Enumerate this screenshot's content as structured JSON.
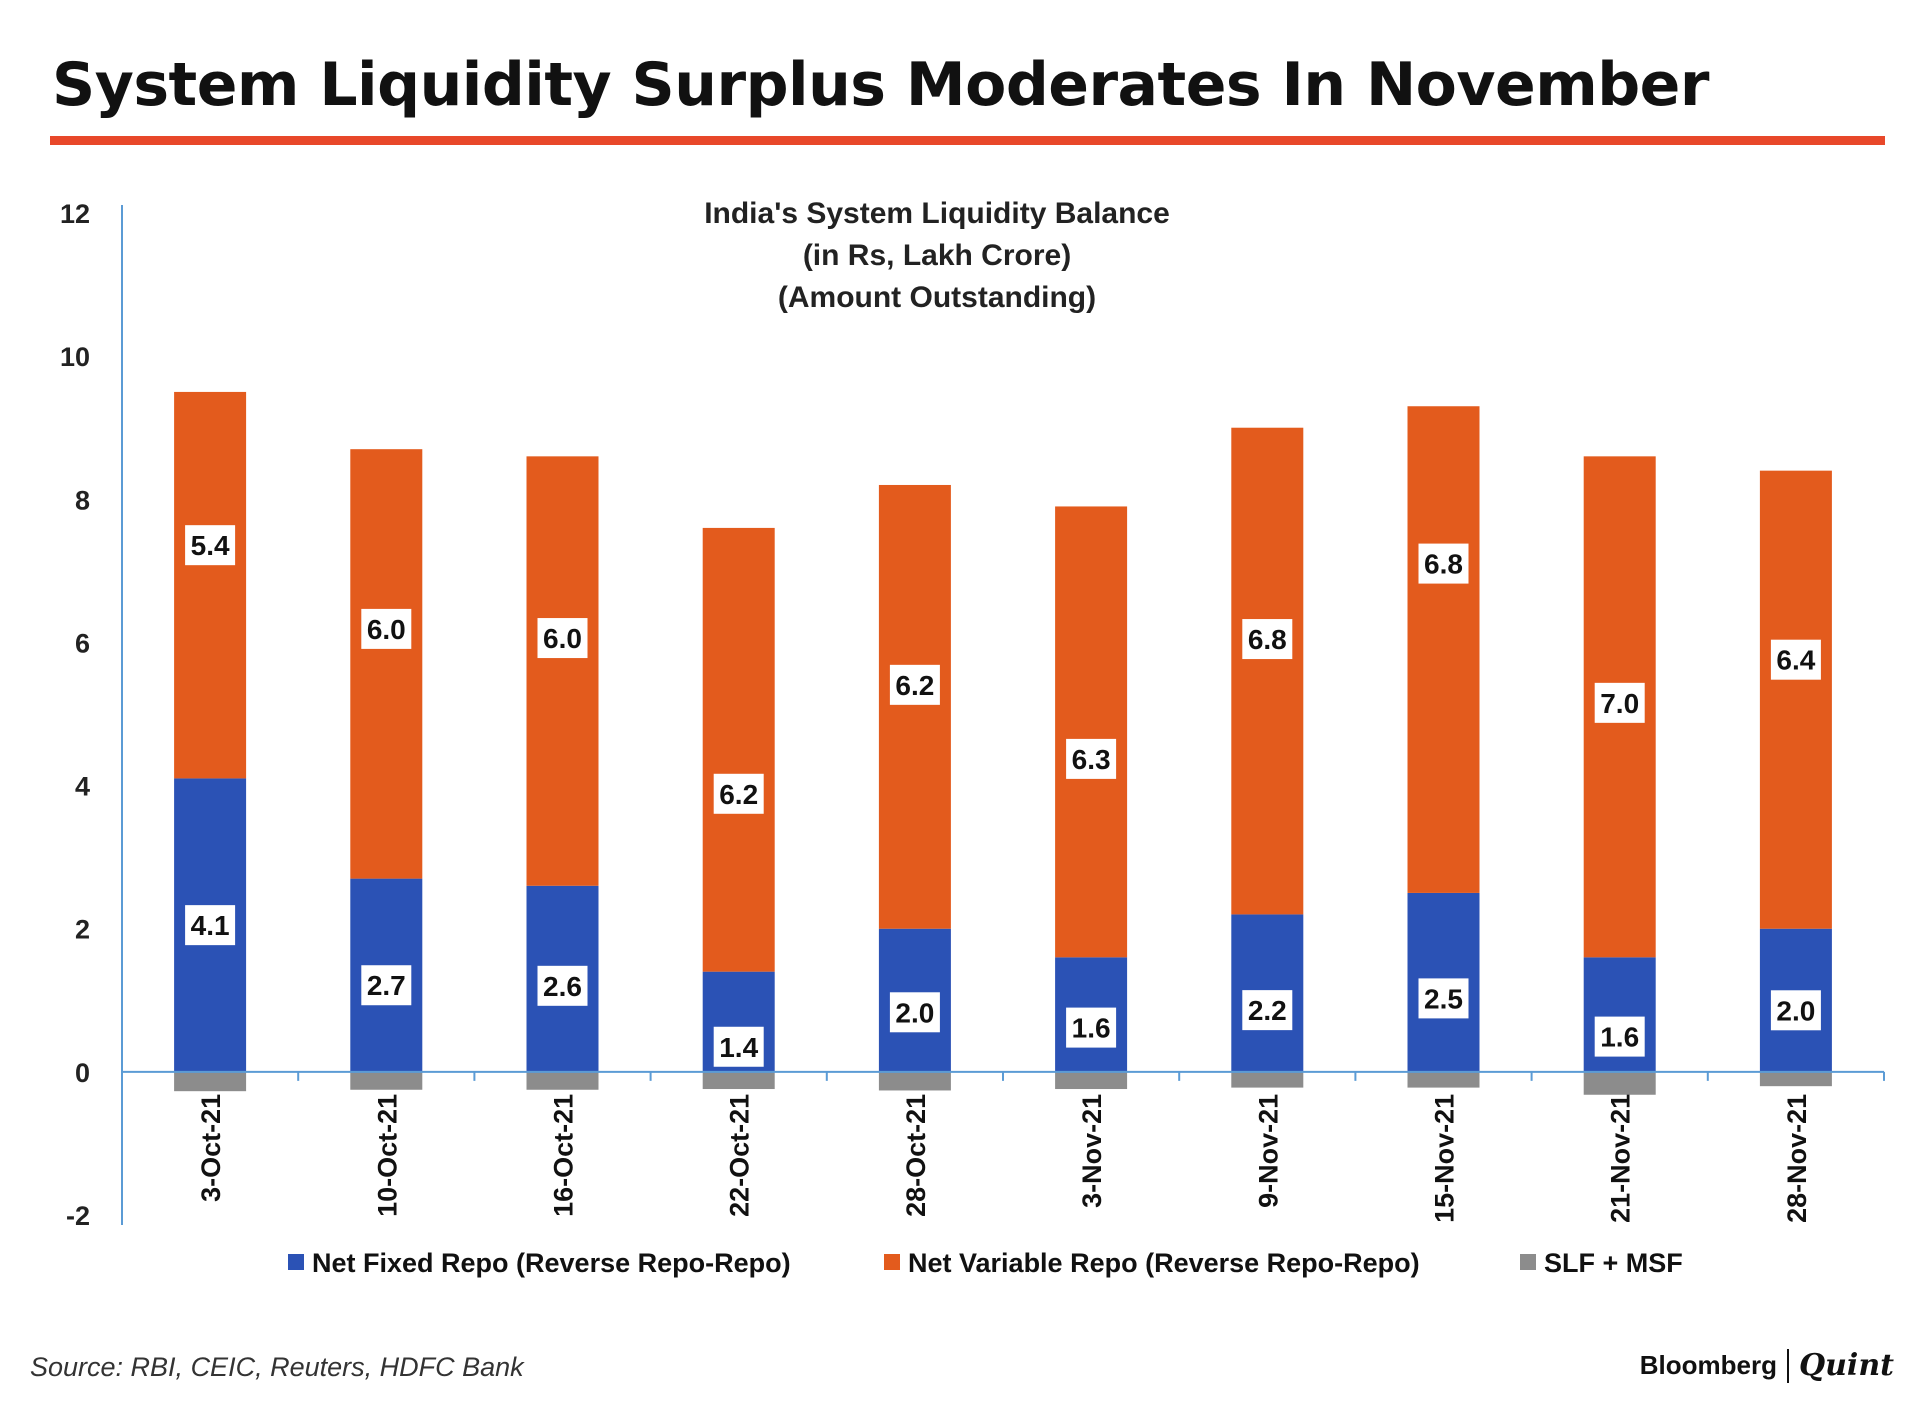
{
  "headline": "System Liquidity Surplus Moderates In November",
  "colors": {
    "accent_rule": "#e8482a",
    "net_fixed": "#2b52b5",
    "net_variable": "#e35b1d",
    "slf_msf": "#8c8c8c",
    "axis": "#5b9bd5"
  },
  "chart_data": {
    "type": "bar",
    "stacked": true,
    "title": [
      "India's System Liquidity Balance",
      "(in Rs, Lakh Crore)",
      "(Amount Outstanding)"
    ],
    "categories": [
      "3-Oct-21",
      "10-Oct-21",
      "16-Oct-21",
      "22-Oct-21",
      "28-Oct-21",
      "3-Nov-21",
      "9-Nov-21",
      "15-Nov-21",
      "21-Nov-21",
      "28-Nov-21"
    ],
    "series": [
      {
        "name": "Net Fixed Repo (Reverse Repo-Repo)",
        "values": [
          4.1,
          2.7,
          2.6,
          1.4,
          2.0,
          1.6,
          2.2,
          2.5,
          1.6,
          2.0
        ],
        "labels": [
          "4.1",
          "2.7",
          "2.6",
          "1.4",
          "2.0",
          "1.6",
          "2.2",
          "2.5",
          "1.6",
          "2.0"
        ]
      },
      {
        "name": "Net Variable Repo (Reverse Repo-Repo)",
        "values": [
          5.4,
          6.0,
          6.0,
          6.2,
          6.2,
          6.3,
          6.8,
          6.8,
          7.0,
          6.4
        ],
        "labels": [
          "5.4",
          "6.0",
          "6.0",
          "6.2",
          "6.2",
          "6.3",
          "6.8",
          "6.8",
          "7.0",
          "6.4"
        ]
      },
      {
        "name": "SLF + MSF",
        "values": [
          -0.27,
          -0.25,
          -0.25,
          -0.24,
          -0.26,
          -0.24,
          -0.22,
          -0.22,
          -0.32,
          -0.2
        ]
      }
    ],
    "ylim": [
      -2,
      12
    ],
    "yticks": [
      "-2",
      "0",
      "2",
      "4",
      "6",
      "8",
      "10",
      "12"
    ],
    "xlabel": "",
    "ylabel": "",
    "legend_position": "bottom",
    "grid": false
  },
  "source": "Source: RBI, CEIC, Reuters, HDFC Bank",
  "brand": {
    "bloomberg": "Bloomberg",
    "quint": "Quint"
  }
}
